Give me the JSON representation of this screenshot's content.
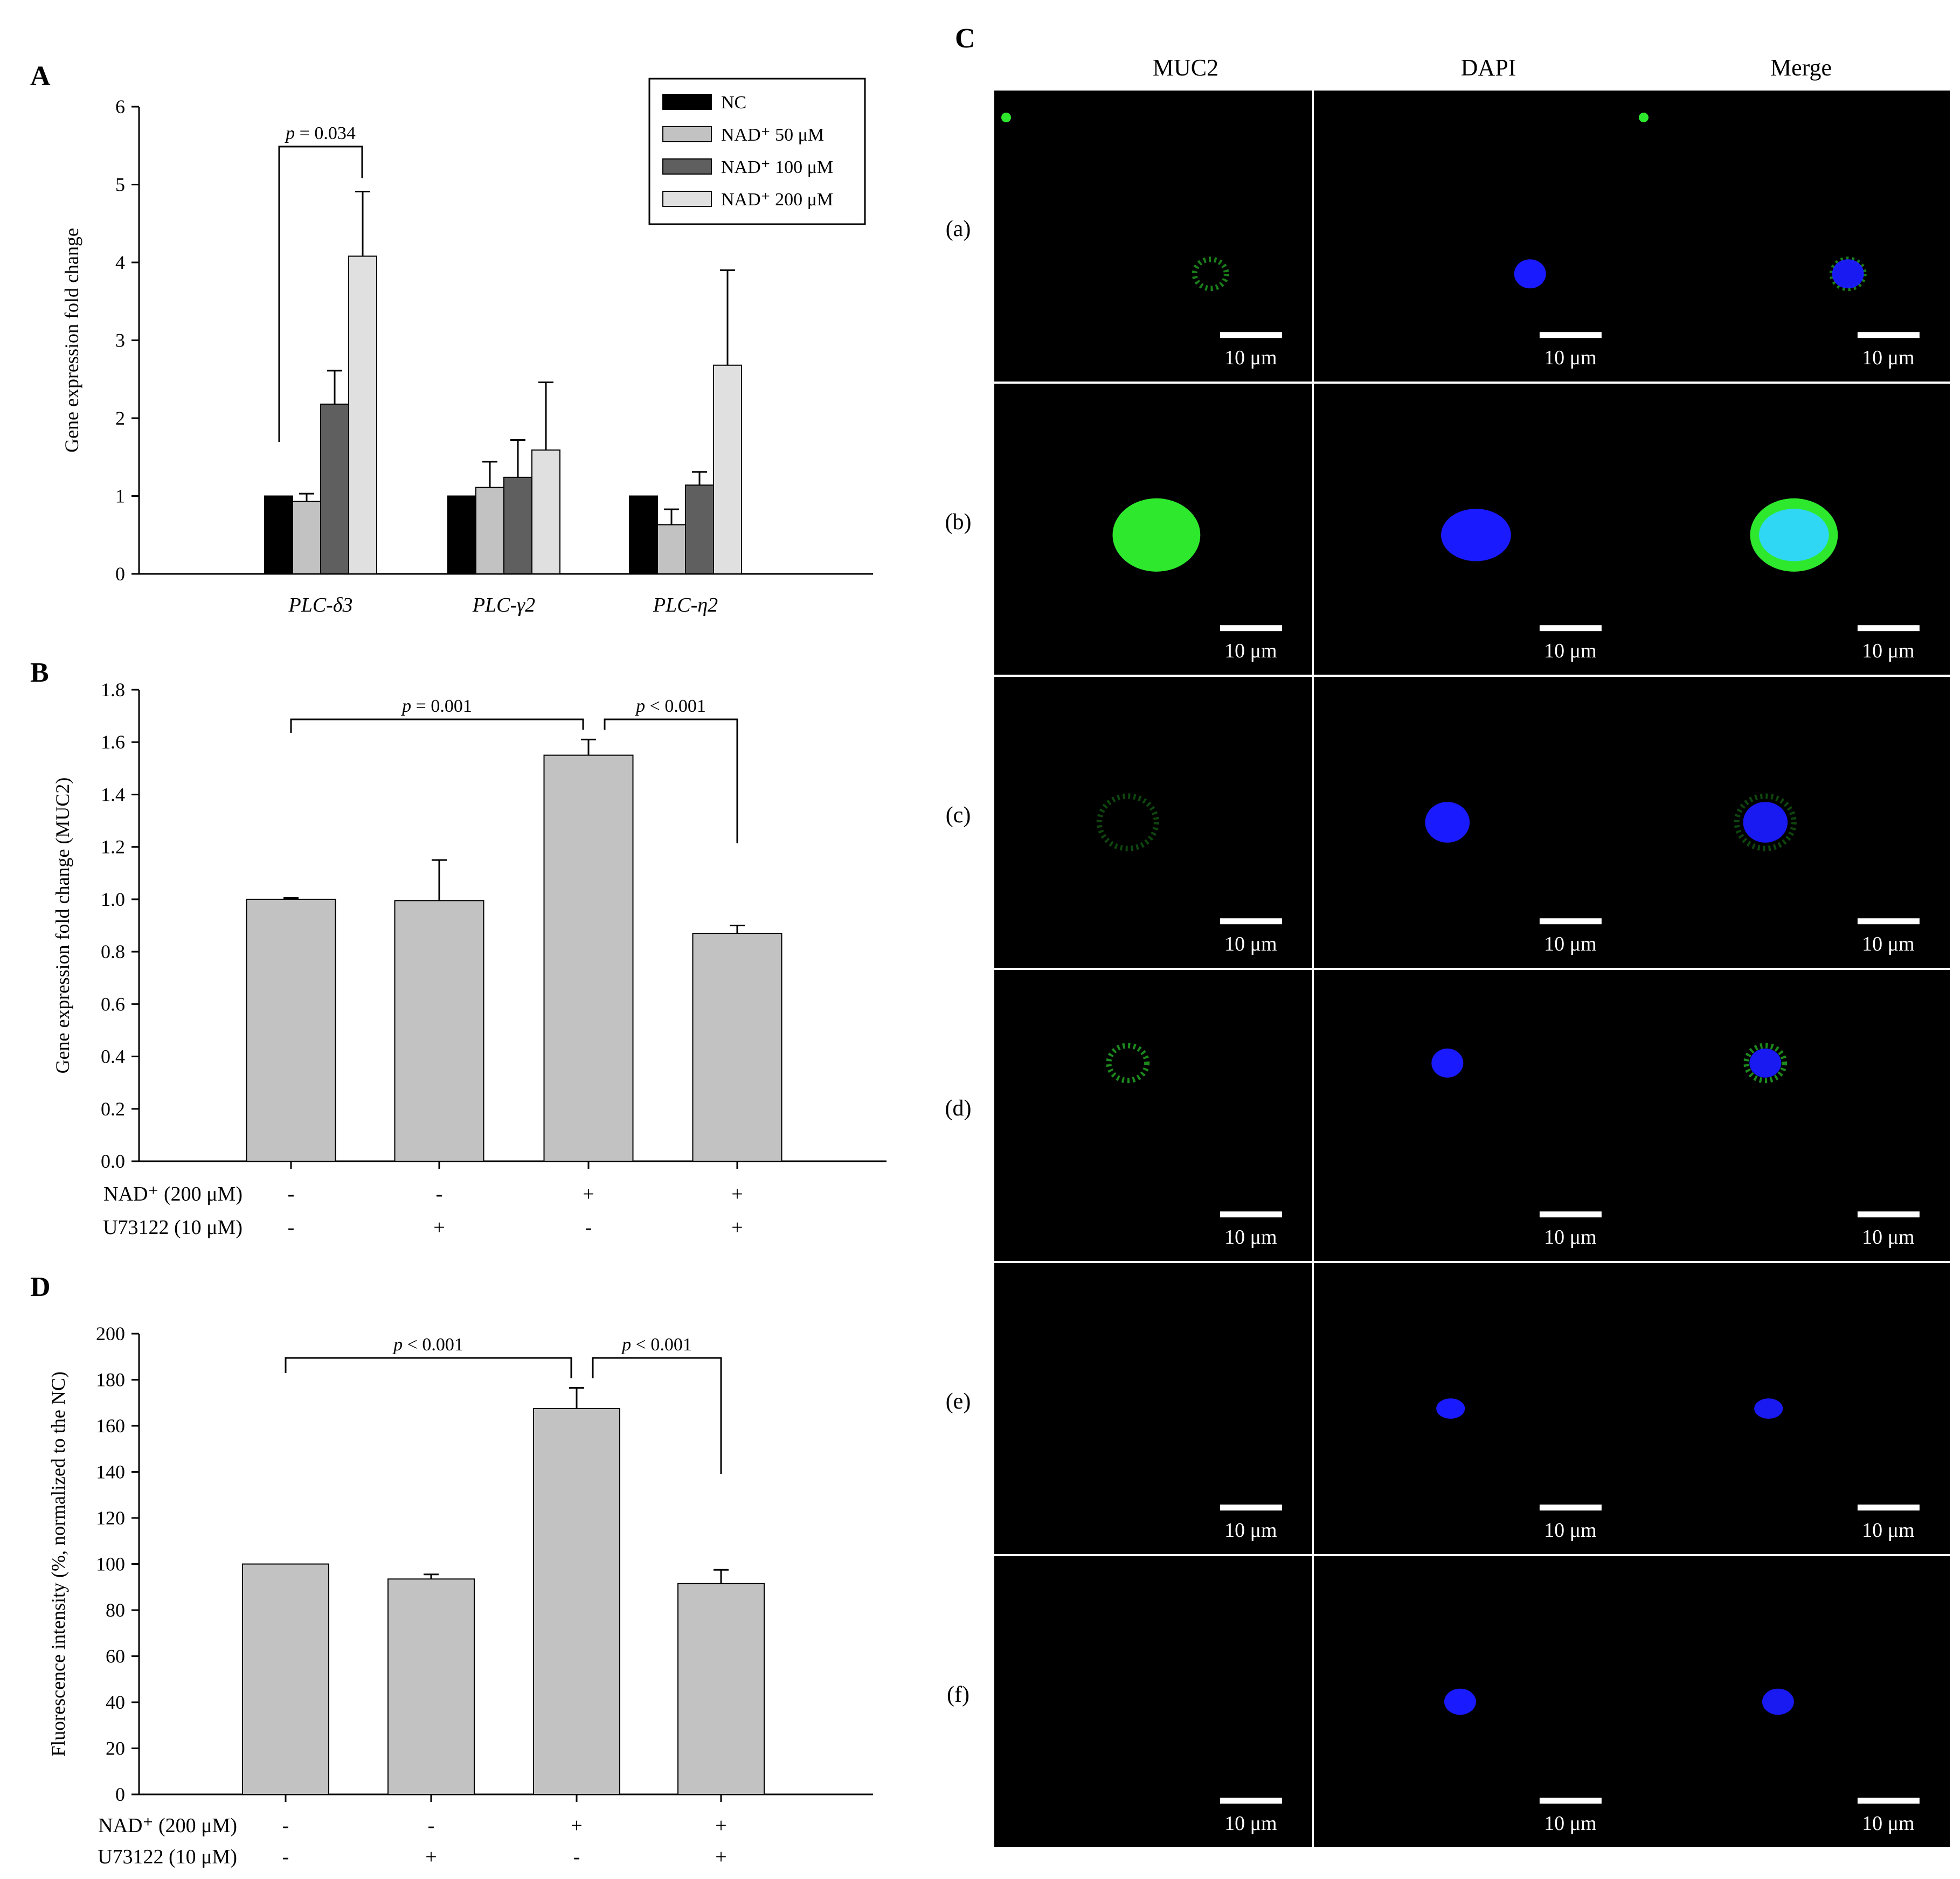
{
  "panels": {
    "A": {
      "letter": "A",
      "ylabel": "Gene expression fold change",
      "yticks": [
        "0",
        "1",
        "2",
        "3",
        "4",
        "5",
        "6"
      ],
      "legend": [
        {
          "label": "NC",
          "color": "#000000"
        },
        {
          "label": "NAD⁺ 50 μM",
          "color": "#c2c2c2"
        },
        {
          "label": "NAD⁺ 100 μM",
          "color": "#5f5f5f"
        },
        {
          "label": "NAD⁺ 200 μM",
          "color": "#e0e0e0"
        }
      ],
      "annotation": "p = 0.034"
    },
    "B": {
      "letter": "B",
      "ylabel": "Gene expression fold change (MUC2)",
      "yticks": [
        "0.0",
        "0.2",
        "0.4",
        "0.6",
        "0.8",
        "1.0",
        "1.2",
        "1.4",
        "1.6",
        "1.8"
      ],
      "annotations": [
        "p = 0.001",
        "p < 0.001"
      ],
      "row_labels": [
        "NAD⁺ (200 μM)",
        "U73122 (10 μM)"
      ],
      "row1_signs": [
        "-",
        "-",
        "+",
        "+"
      ],
      "row2_signs": [
        "-",
        "+",
        "-",
        "+"
      ]
    },
    "D": {
      "letter": "D",
      "ylabel": "Fluorescence intensity (%, normalized to the NC)",
      "yticks": [
        "0",
        "20",
        "40",
        "60",
        "80",
        "100",
        "120",
        "140",
        "160",
        "180",
        "200"
      ],
      "annotations": [
        "p < 0.001",
        "p < 0.001"
      ],
      "row_labels": [
        "NAD⁺ (200 μM)",
        "U73122 (10 μM)"
      ],
      "row1_signs": [
        "-",
        "-",
        "+",
        "+"
      ],
      "row2_signs": [
        "-",
        "+",
        "-",
        "+"
      ]
    },
    "C": {
      "letter": "C",
      "columns": [
        "MUC2",
        "DAPI",
        "Merge"
      ],
      "rows": [
        "(a)",
        "(b)",
        "(c)",
        "(d)",
        "(e)",
        "(f)"
      ],
      "scalebar": "10 μm",
      "colors": {
        "muc2": "#2ee82e",
        "dapi": "#1a1aff",
        "merge": "#2fd6ff"
      }
    }
  },
  "chart_data": [
    {
      "type": "bar",
      "panel": "A",
      "categories": [
        "PLC-δ3",
        "PLC-γ2",
        "PLC-η2"
      ],
      "series": [
        {
          "name": "NC",
          "values": [
            1.0,
            1.0,
            1.0
          ],
          "errors": [
            0.0,
            0.0,
            0.0
          ]
        },
        {
          "name": "NAD⁺ 50 μM",
          "values": [
            0.93,
            1.11,
            0.63
          ],
          "errors": [
            0.1,
            0.33,
            0.2
          ]
        },
        {
          "name": "NAD⁺ 100 μM",
          "values": [
            2.18,
            1.24,
            1.14
          ],
          "errors": [
            0.43,
            0.48,
            0.17
          ]
        },
        {
          "name": "NAD⁺ 200 μM",
          "values": [
            4.08,
            1.59,
            2.68
          ],
          "errors": [
            0.83,
            0.87,
            1.22
          ]
        }
      ],
      "ylabel": "Gene expression fold change",
      "ylim": [
        0,
        6
      ],
      "legend": "top-right",
      "grid": false
    },
    {
      "type": "bar",
      "panel": "B",
      "categories": [
        "1",
        "2",
        "3",
        "4"
      ],
      "values": [
        1.0,
        0.995,
        1.55,
        0.87
      ],
      "errors": [
        0.005,
        0.155,
        0.06,
        0.03
      ],
      "ylabel": "Gene expression fold change (MUC2)",
      "ylim": [
        0,
        1.8
      ],
      "grid": false
    },
    {
      "type": "bar",
      "panel": "D",
      "categories": [
        "1",
        "2",
        "3",
        "4"
      ],
      "values": [
        100,
        93.5,
        167.5,
        91.5
      ],
      "errors": [
        0,
        2,
        9,
        6
      ],
      "ylabel": "Fluorescence intensity (%, normalized to the NC)",
      "ylim": [
        0,
        200
      ],
      "grid": false
    }
  ],
  "microscopy": {
    "muc2": [
      {
        "kind": "ring",
        "rx": 0.05,
        "ry": 0.05,
        "opacity": 0.55,
        "dot": true
      },
      {
        "kind": "solid",
        "rx": 0.23,
        "ry": 0.21,
        "opacity": 1.0
      },
      {
        "kind": "ring",
        "rx": 0.09,
        "ry": 0.09,
        "opacity": 0.3
      },
      {
        "kind": "ring",
        "rx": 0.06,
        "ry": 0.06,
        "opacity": 0.6
      },
      {
        "kind": "none"
      },
      {
        "kind": "none"
      }
    ],
    "dapi": [
      {
        "rx": 0.05,
        "ry": 0.05,
        "dx": 0.68,
        "dy": 0.63
      },
      {
        "rx": 0.11,
        "ry": 0.09,
        "dx": 0.51,
        "dy": 0.52
      },
      {
        "rx": 0.07,
        "ry": 0.07,
        "dx": 0.42,
        "dy": 0.5
      },
      {
        "rx": 0.05,
        "ry": 0.05,
        "dx": 0.42,
        "dy": 0.32
      },
      {
        "rx": 0.045,
        "ry": 0.035,
        "dx": 0.43,
        "dy": 0.5
      },
      {
        "rx": 0.05,
        "ry": 0.045,
        "dx": 0.46,
        "dy": 0.5
      }
    ]
  }
}
